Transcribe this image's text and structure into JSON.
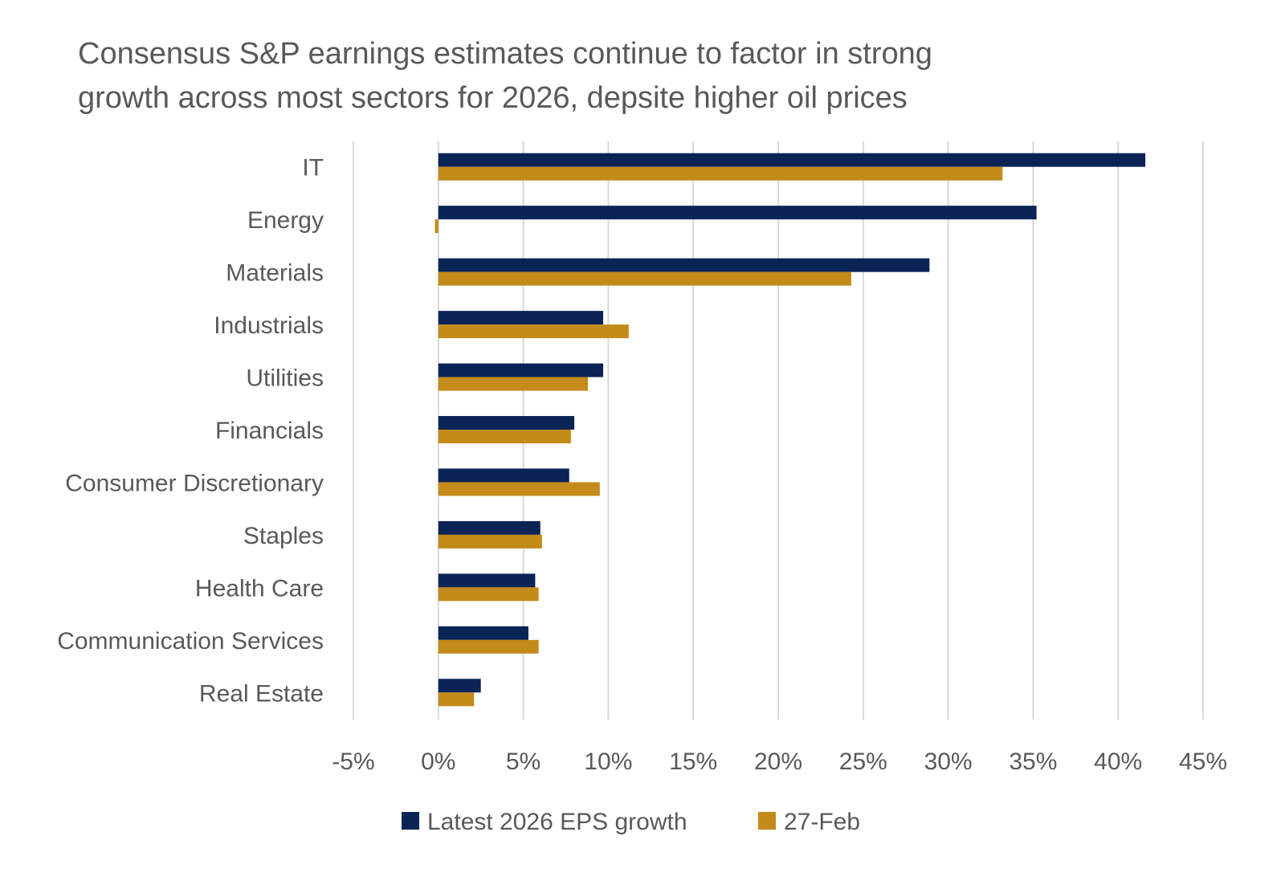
{
  "chart_data": {
    "type": "bar",
    "orientation": "horizontal",
    "title_lines": [
      "Consensus S&P earnings estimates continue to factor in strong",
      "growth across most sectors for 2026, depsite higher oil prices"
    ],
    "categories": [
      "IT",
      "Energy",
      "Materials",
      "Industrials",
      "Utilities",
      "Financials",
      "Consumer Discretionary",
      "Staples",
      "Health Care",
      "Communication Services",
      "Real Estate"
    ],
    "series": [
      {
        "name": "Latest 2026 EPS growth",
        "color": "#0b2456",
        "values": [
          41.6,
          35.2,
          28.9,
          9.7,
          9.7,
          8.0,
          7.7,
          6.0,
          5.7,
          5.3,
          2.5
        ]
      },
      {
        "name": "27-Feb",
        "color": "#c48a1a",
        "values": [
          33.2,
          -0.2,
          24.3,
          11.2,
          8.8,
          7.8,
          9.5,
          6.1,
          5.9,
          5.9,
          2.1
        ]
      }
    ],
    "xlim": [
      -5,
      45
    ],
    "xticks": [
      -5,
      0,
      5,
      10,
      15,
      20,
      25,
      30,
      35,
      40,
      45
    ],
    "xtick_labels": [
      "-5%",
      "0%",
      "5%",
      "10%",
      "15%",
      "20%",
      "25%",
      "30%",
      "35%",
      "40%",
      "45%"
    ],
    "grid": "vertical",
    "legend": "bottom",
    "xlabel": "",
    "ylabel": ""
  }
}
